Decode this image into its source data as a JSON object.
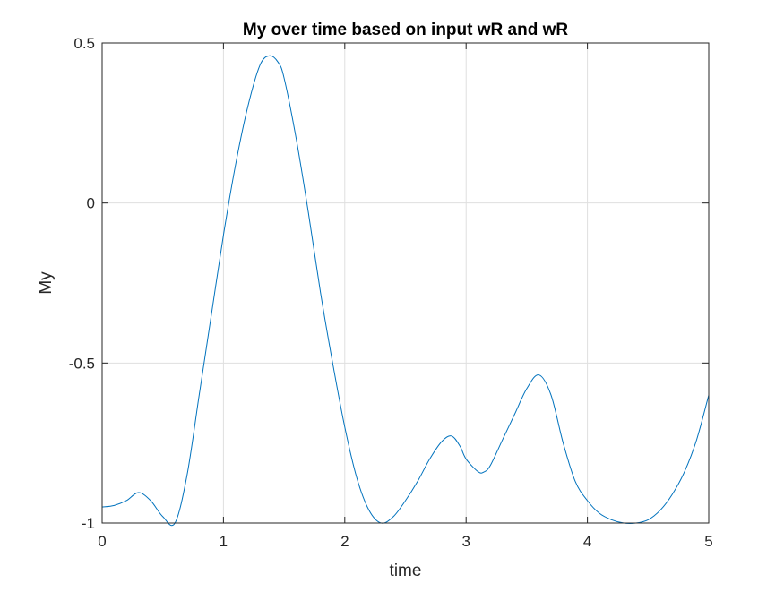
{
  "chart_data": {
    "type": "line",
    "title": "My over time based on input wR and wR",
    "xlabel": "time",
    "ylabel": "My",
    "xlim": [
      0,
      5
    ],
    "ylim": [
      -1,
      0.5
    ],
    "grid": true,
    "xticks": [
      0,
      1,
      2,
      3,
      4,
      5
    ],
    "xtick_labels": [
      "0",
      "1",
      "2",
      "3",
      "4",
      "5"
    ],
    "yticks": [
      -1,
      -0.5,
      0,
      0.5
    ],
    "ytick_labels": [
      "-1",
      "-0.5",
      "0",
      "0.5"
    ],
    "series": [
      {
        "color": "#0072BD",
        "x": [
          0,
          0.1,
          0.2,
          0.3,
          0.4,
          0.5,
          0.6,
          0.7,
          0.8,
          0.9,
          1.0,
          1.1,
          1.2,
          1.3,
          1.38,
          1.45,
          1.5,
          1.6,
          1.7,
          1.8,
          1.9,
          2.0,
          2.1,
          2.2,
          2.3,
          2.4,
          2.5,
          2.6,
          2.7,
          2.8,
          2.88,
          2.95,
          3.0,
          3.1,
          3.15,
          3.2,
          3.3,
          3.4,
          3.5,
          3.6,
          3.7,
          3.8,
          3.9,
          4.0,
          4.1,
          4.2,
          4.3,
          4.4,
          4.5,
          4.6,
          4.7,
          4.8,
          4.9,
          5.0
        ],
        "y": [
          -0.95,
          -0.945,
          -0.93,
          -0.905,
          -0.93,
          -0.98,
          -1.0,
          -0.85,
          -0.6,
          -0.35,
          -0.1,
          0.12,
          0.3,
          0.43,
          0.46,
          0.44,
          0.39,
          0.2,
          -0.03,
          -0.28,
          -0.5,
          -0.7,
          -0.86,
          -0.96,
          -1.0,
          -0.98,
          -0.93,
          -0.87,
          -0.8,
          -0.745,
          -0.728,
          -0.76,
          -0.8,
          -0.84,
          -0.84,
          -0.82,
          -0.74,
          -0.66,
          -0.58,
          -0.537,
          -0.6,
          -0.75,
          -0.87,
          -0.93,
          -0.97,
          -0.99,
          -1.0,
          -1.0,
          -0.99,
          -0.96,
          -0.91,
          -0.84,
          -0.74,
          -0.6
        ]
      }
    ]
  }
}
